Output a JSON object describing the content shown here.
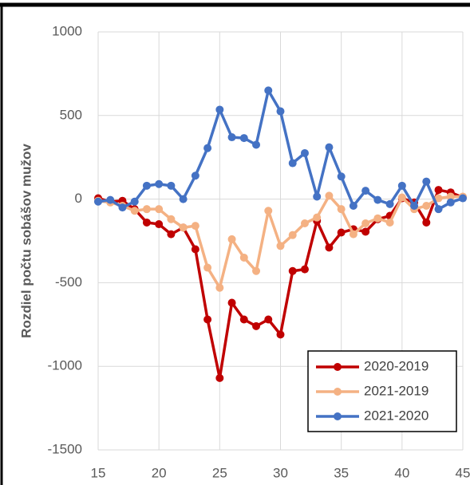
{
  "chart_data": {
    "type": "line",
    "y_label": "Rozdiel počtu sobášov mužov",
    "x": [
      15,
      16,
      17,
      18,
      19,
      20,
      21,
      22,
      23,
      24,
      25,
      26,
      27,
      28,
      29,
      30,
      31,
      32,
      33,
      34,
      35,
      36,
      37,
      38,
      39,
      40,
      41,
      42,
      43,
      44,
      45
    ],
    "series": [
      {
        "name": "2020-2019",
        "color": "#c00000",
        "values": [
          5,
          -15,
          -10,
          -60,
          -140,
          -150,
          -210,
          -170,
          -300,
          -720,
          -1070,
          -620,
          -720,
          -760,
          -720,
          -810,
          -430,
          -420,
          -130,
          -290,
          -200,
          -180,
          -195,
          -120,
          -100,
          5,
          -20,
          -140,
          55,
          40,
          10
        ]
      },
      {
        "name": "2021-2019",
        "color": "#f4b183",
        "values": [
          -10,
          -20,
          -40,
          -70,
          -60,
          -60,
          -120,
          -170,
          -160,
          -410,
          -530,
          -240,
          -350,
          -430,
          -70,
          -280,
          -215,
          -145,
          -110,
          20,
          -60,
          -210,
          -145,
          -115,
          -140,
          10,
          -60,
          -40,
          5,
          15,
          15
        ]
      },
      {
        "name": "2021-2020",
        "color": "#4472c4",
        "values": [
          -15,
          -5,
          -50,
          -15,
          80,
          90,
          80,
          0,
          140,
          305,
          535,
          370,
          365,
          325,
          650,
          525,
          215,
          275,
          15,
          310,
          135,
          -40,
          50,
          -5,
          -30,
          80,
          -40,
          105,
          -60,
          -20,
          5
        ]
      }
    ],
    "xlim": [
      15,
      45
    ],
    "xticks": [
      15,
      20,
      25,
      30,
      35,
      40,
      45
    ],
    "ylim": [
      -1500,
      1000
    ],
    "yticks": [
      -1500,
      -1000,
      -500,
      0,
      500,
      1000
    ],
    "grid": true,
    "legend": "lower right"
  }
}
